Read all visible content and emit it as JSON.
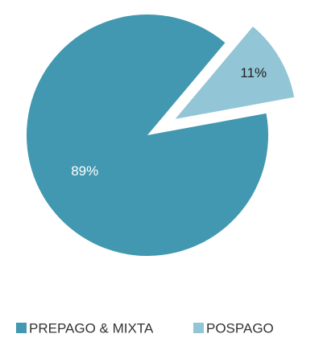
{
  "chart_data": {
    "type": "pie",
    "categories": [
      "PREPAGO & MIXTA",
      "POSPAGO"
    ],
    "values": [
      89,
      11
    ],
    "value_labels": [
      "89%",
      "11%"
    ],
    "colors": [
      "#4198b0",
      "#92c5d6"
    ],
    "legend": "bottom"
  }
}
